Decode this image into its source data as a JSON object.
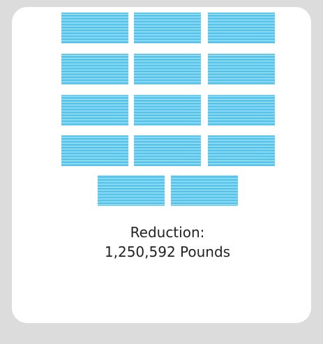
{
  "label": "Reduction:",
  "amount": "1,250,592 Pounds"
}
